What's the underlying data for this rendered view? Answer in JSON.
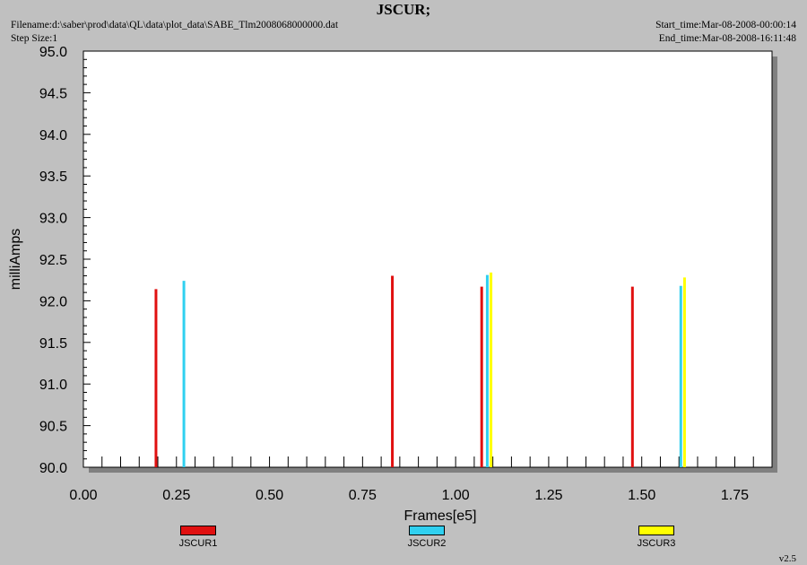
{
  "header": {
    "title": "JSCUR;",
    "filename": "Filename:d:\\saber\\prod\\data\\QL\\data\\plot_data\\SABE_Tlm2008068000000.dat",
    "step_size": "Step Size:1",
    "start_time": "Start_time:Mar-08-2008-00:00:14",
    "end_time": "End_time:Mar-08-2008-16:11:48"
  },
  "footer": {
    "version": "v2.5"
  },
  "colors": {
    "plot_bg": "#ffffff",
    "window_bg": "#c0c0c0",
    "shadow": "#808080"
  },
  "chart_data": {
    "type": "bar",
    "title": "JSCUR;",
    "xlabel": "Frames[e5]",
    "ylabel": "milliAmps",
    "xlim": [
      0.0,
      1.85
    ],
    "ylim": [
      90.0,
      95.0
    ],
    "x_ticks": [
      "0.00",
      "0.25",
      "0.50",
      "0.75",
      "1.00",
      "1.25",
      "1.50",
      "1.75"
    ],
    "y_ticks": [
      "90.0",
      "90.5",
      "91.0",
      "91.5",
      "92.0",
      "92.5",
      "93.0",
      "93.5",
      "94.0",
      "94.5",
      "95.0"
    ],
    "legend_position": "bottom",
    "series": [
      {
        "name": "JSCUR1",
        "color": "#e01010",
        "points": [
          [
            0.195,
            92.14
          ],
          [
            0.83,
            92.3
          ],
          [
            1.07,
            92.17
          ],
          [
            1.475,
            92.17
          ]
        ]
      },
      {
        "name": "JSCUR2",
        "color": "#30d0f0",
        "points": [
          [
            0.27,
            92.24
          ],
          [
            1.085,
            92.31
          ],
          [
            1.605,
            92.18
          ]
        ]
      },
      {
        "name": "JSCUR3",
        "color": "#ffff00",
        "points": [
          [
            1.095,
            92.34
          ],
          [
            1.615,
            92.28
          ]
        ]
      }
    ]
  }
}
